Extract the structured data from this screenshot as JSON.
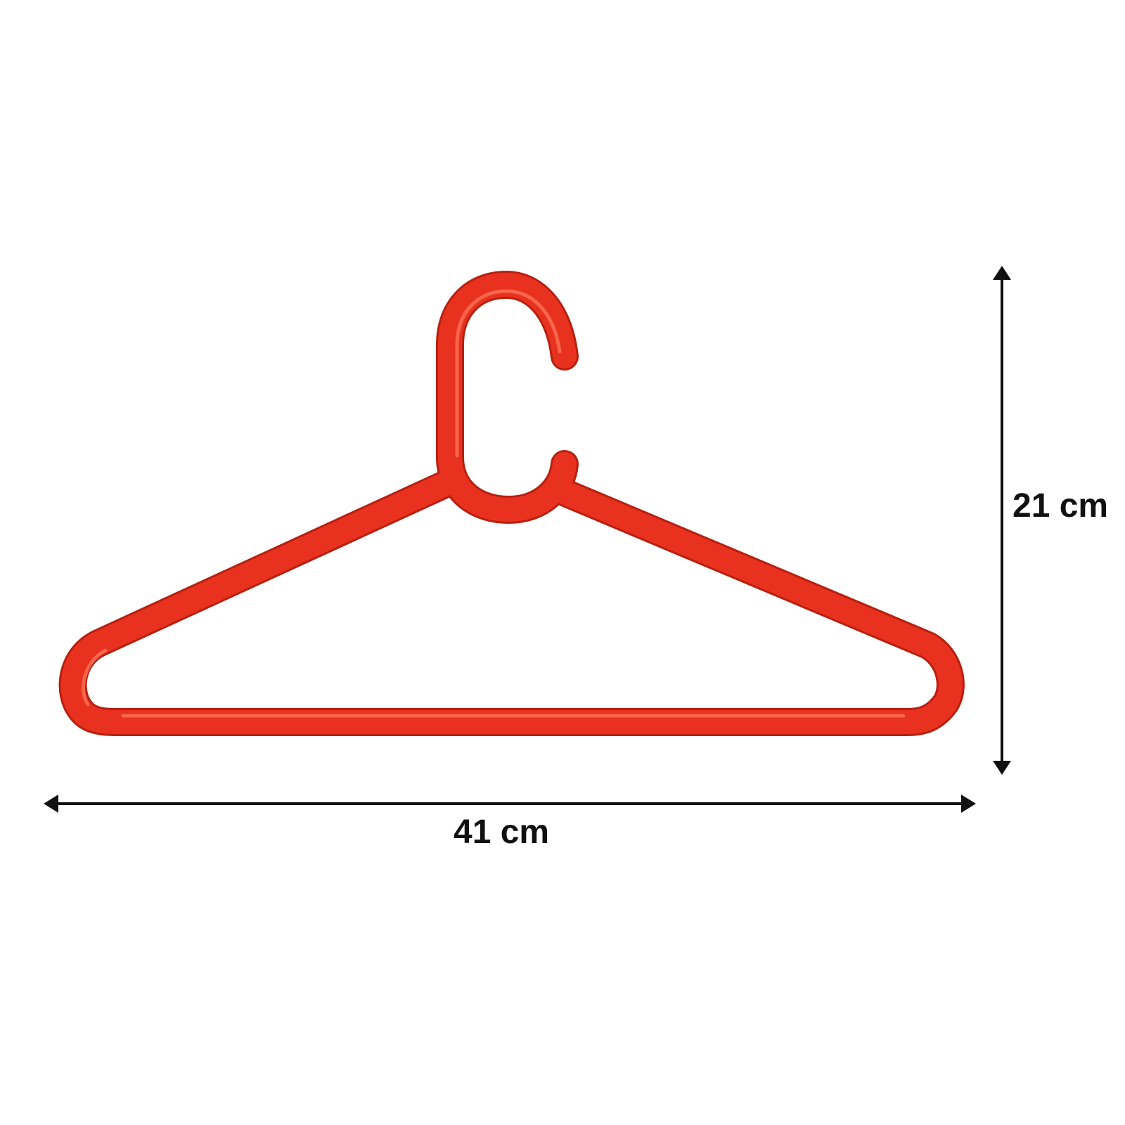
{
  "dimensions": {
    "width_label": "41 cm",
    "height_label": "21 cm"
  },
  "colors": {
    "hanger": "#e8321f",
    "hanger_highlight": "#ff7a5e",
    "hanger_shadow": "#b81f0f",
    "arrow": "#111111",
    "background": "#ffffff"
  },
  "product": {
    "icon": "clothes-hanger-icon",
    "color_name": "red"
  }
}
